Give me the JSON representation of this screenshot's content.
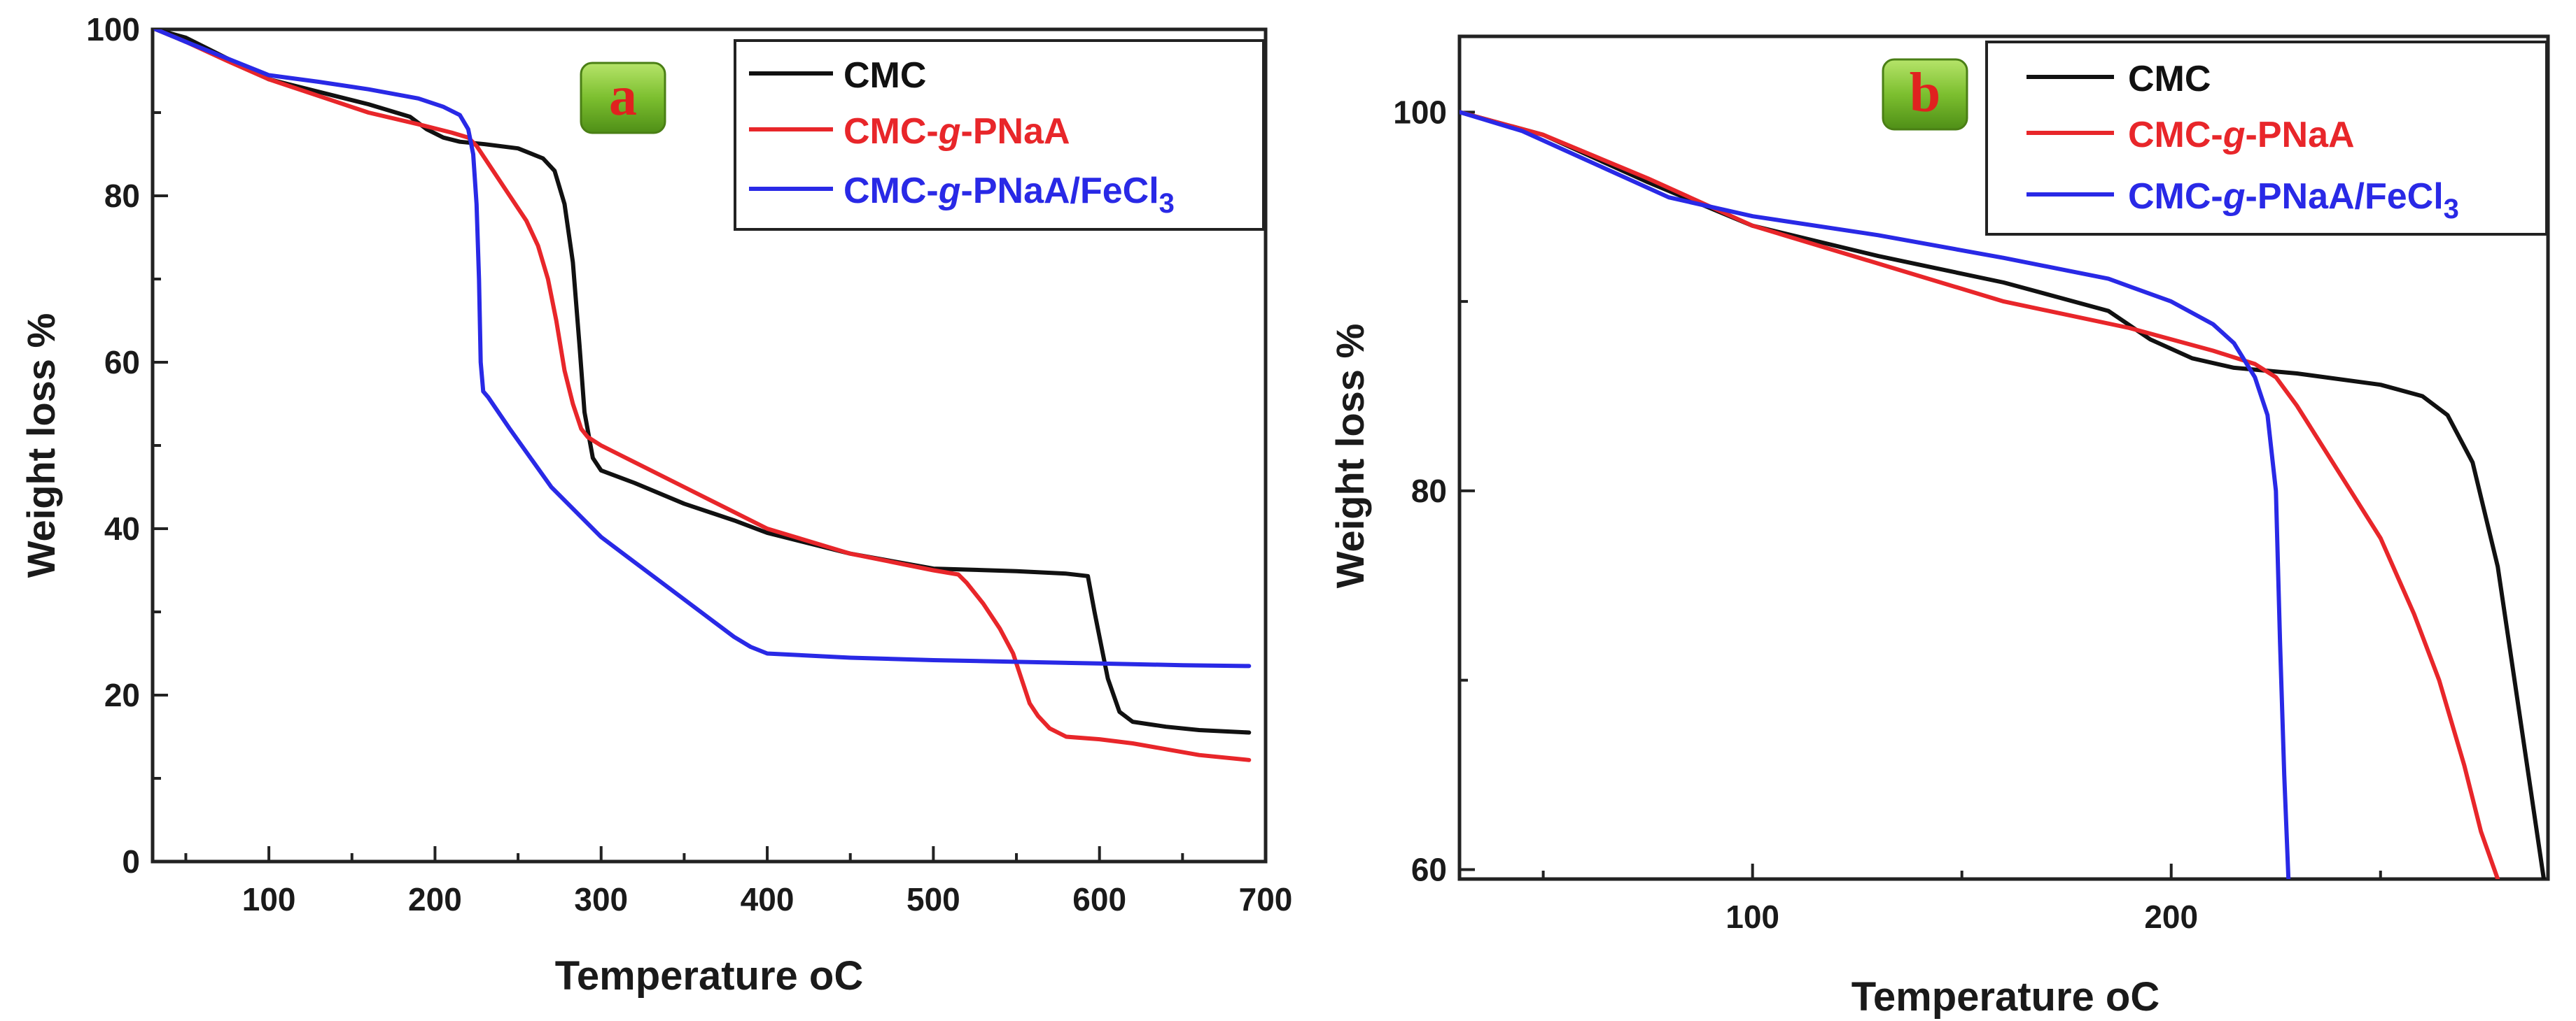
{
  "colors": {
    "cmc": "#111111",
    "cmc_g_pnaa": "#e8262a",
    "cmc_g_pnaa_fecl3": "#2929e6",
    "badge_green": "#7cbf2f",
    "badge_letter": "#e0221f",
    "frame": "#222222"
  },
  "legend": {
    "cmc_label": "CMC",
    "pnaa_prefix": "CMC-",
    "pnaa_g": "g",
    "pnaa_suffix": "-PNaA",
    "fecl3_prefix": "CMC-",
    "fecl3_g": "g",
    "fecl3_mid": "-PNaA/FeCl",
    "fecl3_sub": "3"
  },
  "chart_data": [
    {
      "type": "line",
      "panel": "a",
      "xlabel": "Temperature",
      "xlabel_unit": "oC",
      "ylabel": "Weight loss %",
      "xlim": [
        30,
        700
      ],
      "ylim": [
        0,
        100
      ],
      "xticks": [
        100,
        200,
        300,
        400,
        500,
        600,
        700
      ],
      "yticks": [
        0,
        20,
        40,
        60,
        80,
        100
      ],
      "series": [
        {
          "name": "CMC",
          "key": "cmc",
          "x": [
            32,
            50,
            75,
            100,
            130,
            160,
            185,
            195,
            205,
            215,
            230,
            250,
            265,
            272,
            278,
            283,
            287,
            290,
            295,
            300,
            320,
            350,
            380,
            400,
            450,
            500,
            550,
            580,
            593,
            597,
            600,
            605,
            612,
            620,
            640,
            660,
            690
          ],
          "y": [
            100,
            99,
            96.5,
            94,
            92.5,
            91,
            89.5,
            88,
            87,
            86.5,
            86.2,
            85.7,
            84.5,
            83,
            79,
            72,
            62,
            54,
            48.5,
            47,
            45.5,
            43,
            41,
            39.5,
            37,
            35.2,
            34.9,
            34.6,
            34.3,
            30,
            27,
            22,
            18,
            16.8,
            16.2,
            15.8,
            15.5
          ]
        },
        {
          "name": "CMC-g-PNaA",
          "key": "cmc_g_pnaa",
          "x": [
            32,
            50,
            75,
            100,
            130,
            160,
            190,
            210,
            220,
            225,
            235,
            245,
            255,
            262,
            268,
            273,
            278,
            283,
            288,
            292,
            300,
            320,
            350,
            380,
            400,
            450,
            500,
            515,
            520,
            530,
            540,
            548,
            553,
            558,
            563,
            570,
            580,
            600,
            620,
            640,
            660,
            690
          ],
          "y": [
            100,
            98.5,
            96.2,
            94,
            92,
            90,
            88.6,
            87.6,
            87,
            86,
            83,
            80,
            77,
            74,
            70,
            65,
            59,
            55,
            52,
            51,
            50,
            48,
            45,
            42,
            40,
            37,
            35,
            34.5,
            33.5,
            31,
            28,
            25,
            22,
            19,
            17.5,
            16,
            15,
            14.7,
            14.2,
            13.5,
            12.8,
            12.2
          ]
        },
        {
          "name": "CMC-g-PNaA/FeCl3",
          "key": "cmc_g_pnaa_fecl3",
          "x": [
            32,
            50,
            75,
            100,
            130,
            160,
            190,
            205,
            215,
            220,
            223,
            225,
            226.5,
            227.5,
            229,
            232,
            245,
            270,
            300,
            330,
            360,
            380,
            390,
            400,
            450,
            500,
            550,
            600,
            650,
            690
          ],
          "y": [
            100,
            98.5,
            96.5,
            94.5,
            93.7,
            92.8,
            91.7,
            90.7,
            89.7,
            88,
            85,
            79,
            70,
            60,
            56.5,
            55.8,
            52,
            45,
            39,
            34.5,
            30,
            27,
            25.8,
            25,
            24.5,
            24.2,
            24,
            23.8,
            23.6,
            23.5
          ]
        }
      ]
    },
    {
      "type": "line",
      "panel": "b",
      "xlabel": "Temperature",
      "xlabel_unit": "oC",
      "ylabel": "Weight loss %",
      "xlim": [
        30,
        290
      ],
      "ylim": [
        59.5,
        104
      ],
      "xticks": [
        100,
        200
      ],
      "yticks": [
        60,
        80,
        100
      ],
      "series": [
        {
          "name": "CMC",
          "key": "cmc",
          "x": [
            30,
            50,
            75,
            100,
            130,
            160,
            185,
            195,
            205,
            215,
            230,
            250,
            260,
            266,
            272,
            278,
            282,
            286,
            289
          ],
          "y": [
            100,
            98.8,
            96.3,
            94,
            92.4,
            91,
            89.5,
            88,
            87,
            86.5,
            86.2,
            85.6,
            85,
            84,
            81.5,
            76,
            70,
            64,
            59.5
          ]
        },
        {
          "name": "CMC-g-PNaA",
          "key": "cmc_g_pnaa",
          "x": [
            30,
            50,
            75,
            100,
            130,
            160,
            190,
            210,
            220,
            225,
            230,
            240,
            250,
            258,
            264,
            270,
            274,
            278
          ],
          "y": [
            100,
            98.8,
            96.5,
            94,
            92,
            90,
            88.6,
            87.4,
            86.7,
            86,
            84.5,
            81,
            77.5,
            73.5,
            70,
            65.5,
            62,
            59.5
          ]
        },
        {
          "name": "CMC-g-PNaA/FeCl3",
          "key": "cmc_g_pnaa_fecl3",
          "x": [
            30,
            45,
            60,
            80,
            100,
            130,
            160,
            185,
            200,
            210,
            215,
            220,
            223,
            225,
            226,
            227,
            228
          ],
          "y": [
            100,
            99,
            97.5,
            95.5,
            94.5,
            93.5,
            92.3,
            91.2,
            90,
            88.8,
            87.8,
            86,
            84,
            80,
            72,
            65,
            59.5
          ]
        }
      ]
    }
  ],
  "badges": {
    "a": "a",
    "b": "b"
  }
}
